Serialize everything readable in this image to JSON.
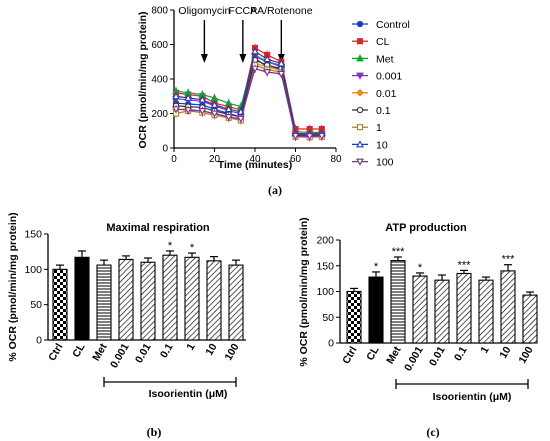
{
  "panel_labels": [
    "(a)",
    "(b)",
    "(c)"
  ],
  "chart_data": [
    {
      "type": "line",
      "panel": "(a)",
      "xlabel": "Time (minutes)",
      "ylabel": "OCR (pmol/min/mg protein)",
      "xlim": [
        0,
        80
      ],
      "ylim": [
        0,
        800
      ],
      "xticks": [
        "0",
        "20",
        "40",
        "60",
        "80"
      ],
      "yticks": [
        "0",
        "200",
        "400",
        "600",
        "800"
      ],
      "annotations": [
        {
          "label": "Oligomycin",
          "x": 15
        },
        {
          "label": "FCCP",
          "x": 34
        },
        {
          "label": "AA/Rotenone",
          "x": 53
        }
      ],
      "x": [
        1,
        7,
        14,
        20,
        27,
        33,
        40,
        46,
        53,
        60,
        67,
        73
      ],
      "series": [
        {
          "name": "Control",
          "color": "#1f3fbf",
          "marker": "circle",
          "values": [
            260,
            255,
            250,
            225,
            200,
            180,
            520,
            470,
            455,
            75,
            70,
            75
          ]
        },
        {
          "name": "CL",
          "color": "#e0202a",
          "marker": "square",
          "values": [
            320,
            310,
            300,
            260,
            240,
            220,
            580,
            540,
            500,
            110,
            110,
            110
          ]
        },
        {
          "name": "Met",
          "color": "#1f9a3a",
          "marker": "triangle",
          "values": [
            330,
            320,
            310,
            290,
            260,
            240,
            540,
            500,
            480,
            95,
            90,
            90
          ]
        },
        {
          "name": "0.001",
          "color": "#8b2fc9",
          "marker": "tri-down",
          "values": [
            285,
            280,
            270,
            245,
            215,
            200,
            530,
            500,
            470,
            80,
            78,
            80
          ]
        },
        {
          "name": "0.01",
          "color": "#e08a1e",
          "marker": "diamond",
          "values": [
            225,
            225,
            215,
            200,
            180,
            165,
            490,
            470,
            450,
            70,
            68,
            70
          ]
        },
        {
          "name": "0.1",
          "color": "#333333",
          "marker": "circle-open",
          "values": [
            245,
            240,
            235,
            215,
            195,
            180,
            510,
            480,
            460,
            75,
            72,
            74
          ]
        },
        {
          "name": "1",
          "color": "#b07a2a",
          "marker": "square-open",
          "values": [
            200,
            215,
            205,
            190,
            175,
            160,
            480,
            455,
            440,
            65,
            62,
            65
          ]
        },
        {
          "name": "10",
          "color": "#1f3f9f",
          "marker": "triangle-open",
          "values": [
            300,
            290,
            280,
            250,
            225,
            210,
            560,
            515,
            490,
            85,
            82,
            84
          ]
        },
        {
          "name": "100",
          "color": "#7a2f8f",
          "marker": "tri-down-open",
          "values": [
            225,
            220,
            215,
            200,
            180,
            170,
            460,
            440,
            430,
            70,
            68,
            70
          ]
        }
      ],
      "legend_position": "right"
    },
    {
      "type": "bar",
      "panel": "(b)",
      "title": "Maximal respiration",
      "ylabel": "% OCR (pmol/min/mg protein)",
      "ylim": [
        0,
        150
      ],
      "yticks": [
        "0",
        "50",
        "100",
        "150"
      ],
      "categories": [
        "Ctrl",
        "CL",
        "Met",
        "0.001",
        "0.01",
        "0.1",
        "1",
        "10",
        "100"
      ],
      "values": [
        100,
        117,
        106,
        114,
        110,
        120,
        117,
        112,
        106
      ],
      "errors": [
        6,
        9,
        7,
        5,
        6,
        6,
        6,
        6,
        7
      ],
      "significance": [
        "",
        "",
        "",
        "",
        "",
        "*",
        "*",
        "",
        ""
      ],
      "group_label": "Isoorientin (μM)"
    },
    {
      "type": "bar",
      "panel": "(c)",
      "title": "ATP production",
      "ylabel": "% OCR (pmol/min/mg protein)",
      "ylim": [
        0,
        200
      ],
      "yticks": [
        "0",
        "50",
        "100",
        "150",
        "200"
      ],
      "categories": [
        "Ctrl",
        "CL",
        "Met",
        "0.001",
        "0.01",
        "0.1",
        "1",
        "10",
        "100"
      ],
      "values": [
        100,
        128,
        160,
        130,
        122,
        135,
        122,
        140,
        93
      ],
      "errors": [
        6,
        10,
        7,
        6,
        10,
        6,
        6,
        12,
        6
      ],
      "significance": [
        "",
        "*",
        "***",
        "*",
        "",
        "***",
        "",
        "***",
        ""
      ],
      "group_label": "Isoorientin (μM)"
    }
  ]
}
